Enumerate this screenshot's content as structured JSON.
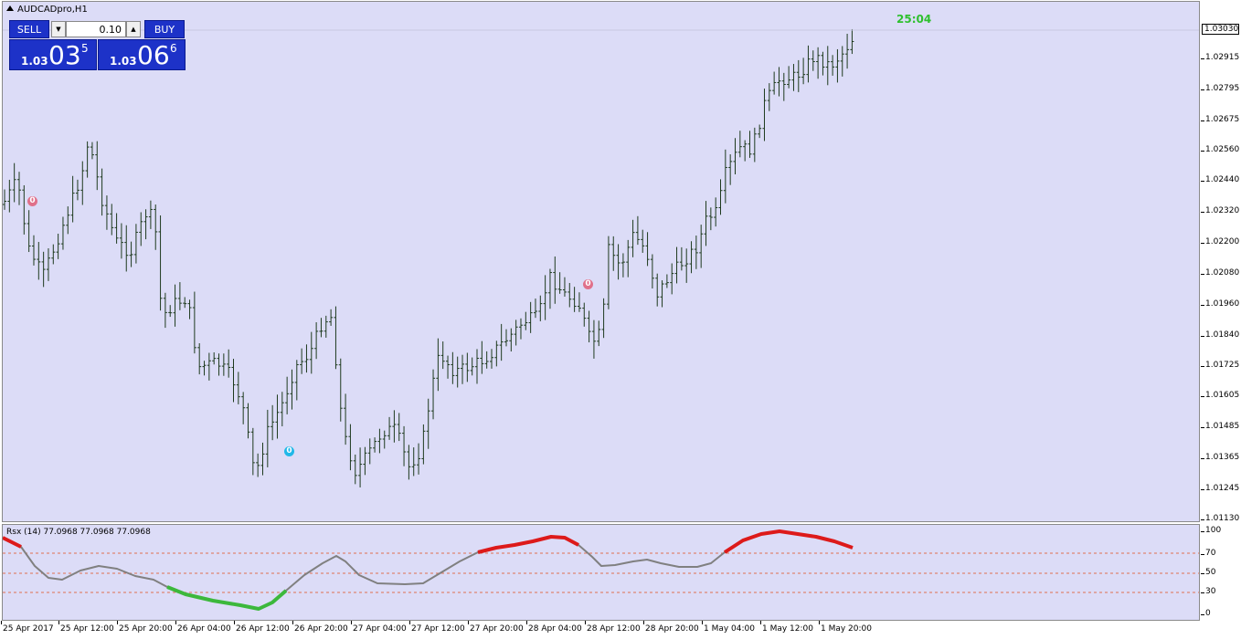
{
  "window": {
    "title": "AUDCADpro,H1",
    "timer": "25:04"
  },
  "trading": {
    "sell_label": "SELL",
    "buy_label": "BUY",
    "lot": "0.10",
    "sell": {
      "prefix": "1.03",
      "big": "03",
      "sup": "5"
    },
    "buy": {
      "prefix": "1.03",
      "big": "06",
      "sup": "6"
    }
  },
  "price_axis": {
    "current": "1.03030",
    "labels": [
      "1.03030",
      "1.02915",
      "1.02795",
      "1.02675",
      "1.02560",
      "1.02440",
      "1.02320",
      "1.02200",
      "1.02080",
      "1.01960",
      "1.01840",
      "1.01725",
      "1.01605",
      "1.01485",
      "1.01365",
      "1.01245",
      "1.01130"
    ]
  },
  "indicator": {
    "label": "Rsx (14) 77.0968 77.0968 77.0968",
    "levels": [
      "100",
      "70",
      "50",
      "30",
      "0"
    ]
  },
  "time_axis": [
    "25 Apr 2017",
    "25 Apr 12:00",
    "25 Apr 20:00",
    "26 Apr 04:00",
    "26 Apr 12:00",
    "26 Apr 20:00",
    "27 Apr 04:00",
    "27 Apr 12:00",
    "27 Apr 20:00",
    "28 Apr 04:00",
    "28 Apr 12:00",
    "28 Apr 20:00",
    "1 May 04:00",
    "1 May 12:00",
    "1 May 20:00"
  ],
  "markers": [
    {
      "label": "0",
      "color": "#e0708a"
    },
    {
      "label": "0",
      "color": "#20b8e8"
    },
    {
      "label": "0",
      "color": "#e0708a"
    }
  ],
  "colors": {
    "background": "#dcdcf7",
    "bars": "#1e3a1e",
    "rsx_neutral": "#808080",
    "rsx_up": "#dd1a1a",
    "rsx_down": "#3cb83c",
    "level_line": "#e07050",
    "accent": "#1d32c8"
  }
}
